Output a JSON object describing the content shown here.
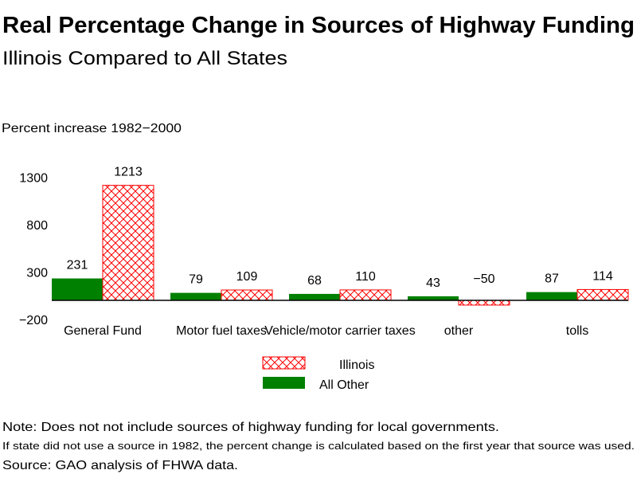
{
  "chart_data": {
    "type": "bar",
    "title": "Real Percentage Change in Sources of Highway Funding",
    "subtitle": "Illinois Compared to All States",
    "ylabel": "Percent increase  1982−2000",
    "xlabel": "",
    "ylim": [
      -200,
      1300
    ],
    "yticks": [
      -200,
      300,
      800,
      1300
    ],
    "ytick_labels": [
      "−200",
      "300",
      "800",
      "1300"
    ],
    "grid": false,
    "legend_placement": "bottom",
    "categories": [
      "General Fund",
      "Motor fuel taxes",
      "Vehicle/motor carrier taxes",
      "other",
      "tolls"
    ],
    "series": [
      {
        "name": "All Other",
        "values": [
          231,
          79,
          68,
          43,
          87
        ],
        "value_labels": [
          "231",
          "79",
          "68",
          "43",
          "87"
        ],
        "color": "#008000",
        "pattern": "solid"
      },
      {
        "name": "Illinois",
        "values": [
          1213,
          109,
          110,
          -50,
          114
        ],
        "value_labels": [
          "1213",
          "109",
          "110",
          "−50",
          "114"
        ],
        "color": "#ff0000",
        "pattern": "crosshatch"
      }
    ],
    "notes": [
      "Note: Does not not include sources of highway funding for local governments.",
      "If state did not use a source in 1982, the percent change is calculated based on the first year that source was used.",
      "Source: GAO analysis of FHWA data."
    ]
  }
}
